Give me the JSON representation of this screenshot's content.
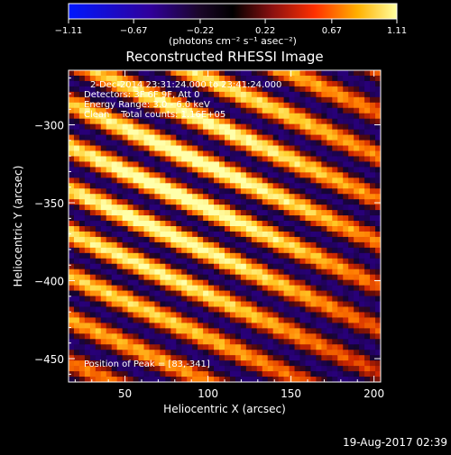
{
  "chart_data": {
    "type": "heatmap",
    "title": "Reconstructed RHESSI Image",
    "xlabel": "Heliocentric X (arcsec)",
    "ylabel": "Heliocentric Y (arcsec)",
    "xlim": [
      16,
      204
    ],
    "ylim": [
      -465,
      -265
    ],
    "xticks": [
      50,
      100,
      150,
      200
    ],
    "yticks": [
      -300,
      -350,
      -400,
      -450
    ],
    "colorbar": {
      "label": "(photons cm⁻² s⁻¹ asec⁻²)",
      "range": [
        -1.11,
        1.11
      ],
      "ticks": [
        "-1.11",
        "-0.67",
        "-0.22",
        "0.22",
        "0.67",
        "1.11"
      ]
    },
    "annotations": [
      "2-Dec-2014 23:31:24.000 to 23:41:24.000",
      "Detectors: 3F 6F 9F, Att 0",
      "Energy Range: 3.0 - 6.0 keV",
      "Clean    Total counts: 1.16E+05"
    ],
    "peak_label": "Position of Peak = [83,-341]",
    "peak": [
      83,
      -341
    ],
    "timestamp": "19-Aug-2017 02:39"
  }
}
